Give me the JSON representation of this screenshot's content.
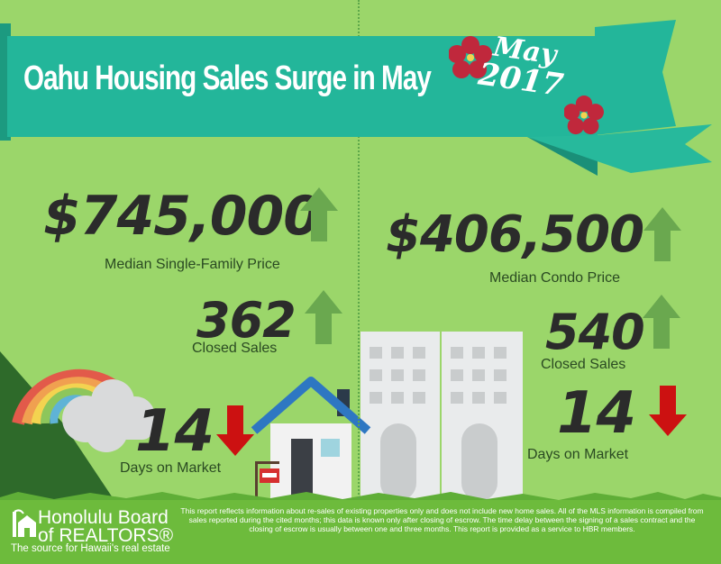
{
  "header": {
    "title": "Oahu Housing Sales Surge in May",
    "date_month": "May",
    "date_year": "2017"
  },
  "single_family": {
    "median_price": "$745,000",
    "median_price_label": "Median Single-Family Price",
    "median_price_trend": "up",
    "closed_sales": "362",
    "closed_sales_label": "Closed Sales",
    "closed_sales_trend": "up",
    "days_on_market": "14",
    "days_on_market_label": "Days on Market",
    "days_on_market_trend": "down"
  },
  "condo": {
    "median_price": "$406,500",
    "median_price_label": "Median Condo Price",
    "median_price_trend": "up",
    "closed_sales": "540",
    "closed_sales_label": "Closed Sales",
    "closed_sales_trend": "up",
    "days_on_market": "14",
    "days_on_market_label": "Days on Market",
    "days_on_market_trend": "down"
  },
  "footer": {
    "org_name_line1": "Honolulu Board",
    "org_name_line2": "of REALTORS®",
    "tagline": "The source for Hawaii's real estate",
    "disclaimer": "This report reflects information about re-sales of existing properties only and does not include new home sales. All of the MLS information is compiled from sales reported during the cited months; this data is known only after closing of escrow. The time delay between the signing of a sales contract and the closing of escrow is usually between one and three months. This report is provided as a service to HBR members."
  },
  "colors": {
    "background": "#9bd66a",
    "banner": "#23b69a",
    "up_arrow": "#6aa84f",
    "down_arrow": "#cc1111",
    "text_dark": "#2b2b2b",
    "flower": "#c0283c"
  },
  "icons": [
    "hibiscus-flower-icon",
    "rainbow-illustration",
    "cloud-illustration",
    "house-illustration",
    "condo-building-illustration",
    "for-sale-sign-icon",
    "arrow-up-icon",
    "arrow-down-icon",
    "hbr-logo-icon"
  ]
}
